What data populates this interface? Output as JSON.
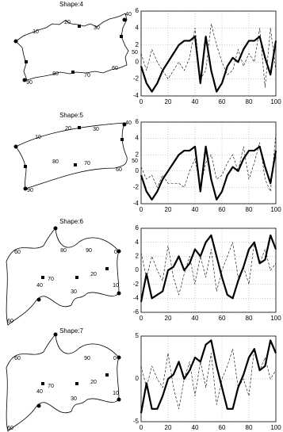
{
  "shapes": [
    {
      "title": "Shape:4",
      "labels": [
        "10",
        "20",
        "30",
        "40",
        "50",
        "60",
        "70",
        "80",
        "90"
      ]
    },
    {
      "title": "Shape:5",
      "labels": [
        "10",
        "20",
        "30",
        "40",
        "50",
        "60",
        "70",
        "80",
        "90"
      ]
    },
    {
      "title": "Shape:6",
      "labels": [
        "60",
        "80",
        "90",
        "0",
        "10",
        "20",
        "30",
        "40",
        "70",
        "60"
      ]
    },
    {
      "title": "Shape:7",
      "labels": [
        "60",
        "90",
        "0",
        "70",
        "40",
        "30",
        "20",
        "10",
        "60"
      ]
    }
  ],
  "chart_data": [
    {
      "type": "line",
      "grid": true,
      "x": [
        0,
        4,
        8,
        12,
        16,
        20,
        24,
        28,
        32,
        36,
        40,
        44,
        48,
        52,
        56,
        60,
        64,
        68,
        72,
        76,
        80,
        84,
        88,
        92,
        96,
        100
      ],
      "xlim": [
        0,
        100
      ],
      "xticks": [
        0,
        20,
        40,
        60,
        80,
        100
      ],
      "ylim": [
        -4,
        6
      ],
      "yticks": [
        -4,
        -2,
        0,
        2,
        4,
        6
      ],
      "series": [
        {
          "color": "#000000",
          "line_style": "solid",
          "values": [
            -0.5,
            -2.5,
            -3.5,
            -2.5,
            -1,
            0,
            1,
            2,
            2.5,
            2.5,
            3,
            -2.5,
            3,
            -1,
            -3.5,
            -2.5,
            -0.5,
            0.5,
            0,
            1.5,
            2.5,
            2.5,
            3,
            0.5,
            -1.5,
            2.5
          ]
        },
        {
          "color": "#000000",
          "line_style": "dashed",
          "values": [
            1,
            -1,
            1.5,
            0,
            -1,
            -2,
            -1,
            0,
            -1,
            0.5,
            4,
            -2,
            -1,
            4.5,
            2,
            0,
            -1.5,
            -1,
            1.5,
            -0.5,
            1,
            0,
            4,
            -3,
            4,
            -1
          ]
        }
      ]
    },
    {
      "type": "line",
      "grid": true,
      "x": [
        0,
        4,
        8,
        12,
        16,
        20,
        24,
        28,
        32,
        36,
        40,
        44,
        48,
        52,
        56,
        60,
        64,
        68,
        72,
        76,
        80,
        84,
        88,
        92,
        96,
        100
      ],
      "xlim": [
        0,
        100
      ],
      "xticks": [
        0,
        20,
        40,
        60,
        80,
        100
      ],
      "ylim": [
        -4,
        6
      ],
      "yticks": [
        -4,
        -2,
        0,
        2,
        4,
        6
      ],
      "series": [
        {
          "color": "#000000",
          "line_style": "solid",
          "values": [
            -0.5,
            -2.5,
            -3.5,
            -2.5,
            -1,
            0,
            1,
            2,
            2.5,
            2.5,
            3,
            -2.5,
            3,
            -1,
            -3.5,
            -2.5,
            -0.5,
            0.5,
            0,
            1.5,
            2.5,
            2.5,
            3,
            0.5,
            -1.5,
            2.5
          ]
        },
        {
          "color": "#000000",
          "line_style": "dashed",
          "values": [
            0.5,
            -1,
            -0.5,
            -2,
            -0.5,
            -1.5,
            -1.5,
            -1.5,
            -2,
            0,
            1.5,
            -2,
            1,
            2,
            -1,
            -0.5,
            1,
            2,
            0,
            3,
            -1,
            1,
            3.5,
            -1,
            -2.5,
            4.5
          ]
        }
      ]
    },
    {
      "type": "line",
      "grid": true,
      "x": [
        0,
        4,
        8,
        12,
        16,
        20,
        24,
        28,
        32,
        36,
        40,
        44,
        48,
        52,
        56,
        60,
        64,
        68,
        72,
        76,
        80,
        84,
        88,
        92,
        96,
        100
      ],
      "xlim": [
        0,
        100
      ],
      "xticks": [
        0,
        20,
        40,
        60,
        80,
        100
      ],
      "ylim": [
        -6,
        6
      ],
      "yticks": [
        -6,
        -4,
        -2,
        0,
        2,
        4,
        6
      ],
      "series": [
        {
          "color": "#000000",
          "line_style": "solid",
          "values": [
            -4.5,
            -0.5,
            -4,
            -3.5,
            -3,
            0,
            0.5,
            2,
            0,
            1,
            3,
            2,
            4,
            5,
            2,
            -1,
            -3.5,
            -4,
            -1.5,
            0.5,
            3,
            4,
            1,
            1.5,
            5,
            3
          ]
        },
        {
          "color": "#000000",
          "line_style": "dashed",
          "values": [
            2.5,
            -1,
            2,
            0,
            -1.5,
            3.5,
            -1,
            -3.5,
            -0.5,
            2,
            -2,
            2,
            -1,
            3,
            -3,
            0,
            2,
            4,
            -1,
            0.5,
            -2,
            4,
            1,
            3,
            0,
            1
          ]
        }
      ]
    },
    {
      "type": "line",
      "grid": true,
      "x": [
        0,
        4,
        8,
        12,
        16,
        20,
        24,
        28,
        32,
        36,
        40,
        44,
        48,
        52,
        56,
        60,
        64,
        68,
        72,
        76,
        80,
        84,
        88,
        92,
        96,
        100
      ],
      "xlim": [
        0,
        100
      ],
      "xticks": [
        0,
        20,
        40,
        60,
        80,
        100
      ],
      "ylim": [
        -5,
        5
      ],
      "yticks": [
        -5,
        0,
        5
      ],
      "series": [
        {
          "color": "#000000",
          "line_style": "solid",
          "values": [
            -4,
            -0.5,
            -3.5,
            -3.5,
            -2,
            0,
            0.5,
            2,
            0,
            1,
            2.5,
            2,
            4,
            4.5,
            1.5,
            -1,
            -3.5,
            -3.5,
            -1,
            0.5,
            2.5,
            3.5,
            1,
            1.5,
            4.5,
            3
          ]
        },
        {
          "color": "#000000",
          "line_style": "dashed",
          "values": [
            1.5,
            -1,
            1.5,
            0,
            -1,
            3,
            -1,
            -3.5,
            0,
            2,
            -2,
            2,
            -1,
            3,
            -3,
            0,
            1.5,
            3.5,
            -1,
            0,
            -2,
            3.5,
            1,
            2.5,
            0,
            1
          ]
        }
      ]
    }
  ]
}
